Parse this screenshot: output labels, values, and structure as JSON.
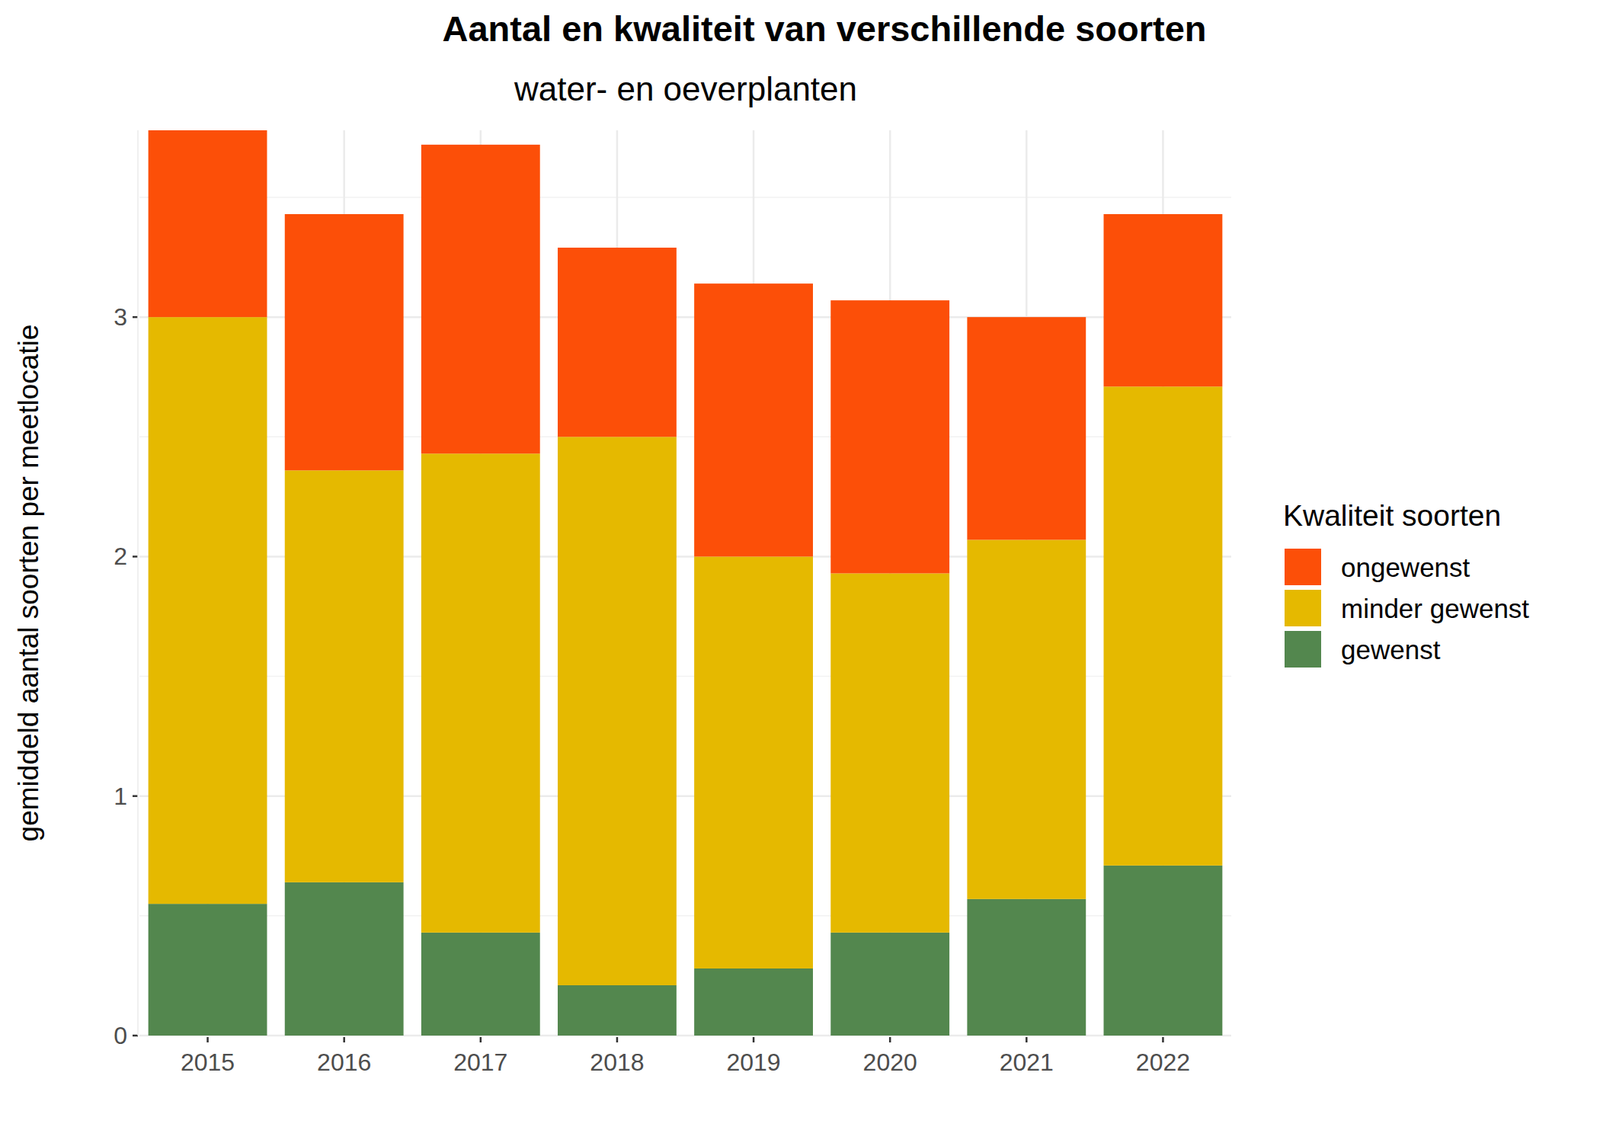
{
  "chart_data": {
    "type": "bar",
    "stacked": true,
    "grid": true,
    "legend": "right",
    "title": "Aantal en kwaliteit van verschillende soorten",
    "subtitle": "water- en oeverplanten",
    "y_label": "gemiddeld aantal soorten per meetlocatie",
    "legend_title": "Kwaliteit soorten",
    "categories": [
      "2015",
      "2016",
      "2017",
      "2018",
      "2019",
      "2020",
      "2021",
      "2022"
    ],
    "series": [
      {
        "name": "gewenst",
        "color": "#53874e",
        "values": [
          0.55,
          0.64,
          0.43,
          0.21,
          0.28,
          0.43,
          0.57,
          0.71
        ]
      },
      {
        "name": "minder gewenst",
        "color": "#e5b900",
        "values": [
          2.45,
          1.72,
          2.0,
          2.29,
          1.72,
          1.5,
          1.5,
          2.0
        ]
      },
      {
        "name": "ongewenst",
        "color": "#fc4f08",
        "values": [
          0.78,
          1.07,
          1.29,
          0.79,
          1.14,
          1.14,
          0.93,
          0.72
        ]
      }
    ],
    "ylim": [
      0,
      3.78
    ],
    "yticks": [
      0,
      1,
      2,
      3
    ]
  }
}
